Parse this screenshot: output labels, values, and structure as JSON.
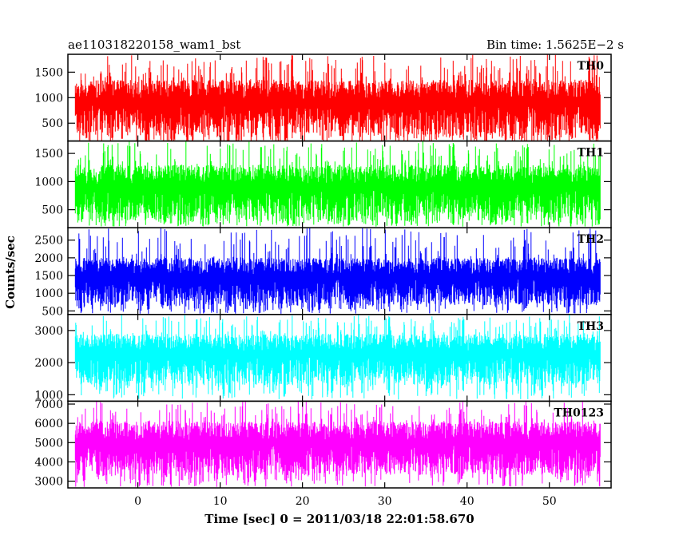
{
  "chart_data": {
    "type": "line",
    "title_left": "ae110318220158_wam1_bst",
    "title_right": "Bin time: 1.5625E−2 s",
    "xlabel": "Time [sec] 0 = 2011/03/18 22:01:58.670",
    "ylabel": "Counts/sec",
    "xlim": [
      -8.5,
      57.5
    ],
    "x_ticks": [
      0,
      10,
      20,
      30,
      40,
      50
    ],
    "x_data_range": [
      -7.6,
      56.2
    ],
    "series": [
      {
        "name": "TH0",
        "color": "#ff0000",
        "ylim": [
          150,
          1850
        ],
        "y_ticks": [
          500,
          1000,
          1500
        ],
        "base_low": 250,
        "base_high": 1350,
        "spike_low": 100,
        "spike_high": 1850
      },
      {
        "name": "TH1",
        "color": "#00ff00",
        "ylim": [
          180,
          1720
        ],
        "y_ticks": [
          500,
          1000,
          1500
        ],
        "base_low": 300,
        "base_high": 1300,
        "spike_low": 200,
        "spike_high": 1720
      },
      {
        "name": "TH2",
        "color": "#0000ff",
        "ylim": [
          400,
          2850
        ],
        "y_ticks": [
          500,
          1000,
          1500,
          2000,
          2500
        ],
        "base_low": 650,
        "base_high": 2000,
        "spike_low": 420,
        "spike_high": 2850
      },
      {
        "name": "TH3",
        "color": "#00ffff",
        "ylim": [
          800,
          3500
        ],
        "y_ticks": [
          1000,
          2000,
          3000
        ],
        "base_low": 1300,
        "base_high": 2900,
        "spike_low": 850,
        "spike_high": 3500
      },
      {
        "name": "TH0123",
        "color": "#ff00ff",
        "ylim": [
          2650,
          7150
        ],
        "y_ticks": [
          3000,
          4000,
          5000,
          6000,
          7000
        ],
        "base_low": 3300,
        "base_high": 6100,
        "spike_low": 2700,
        "spike_high": 7150
      }
    ]
  }
}
